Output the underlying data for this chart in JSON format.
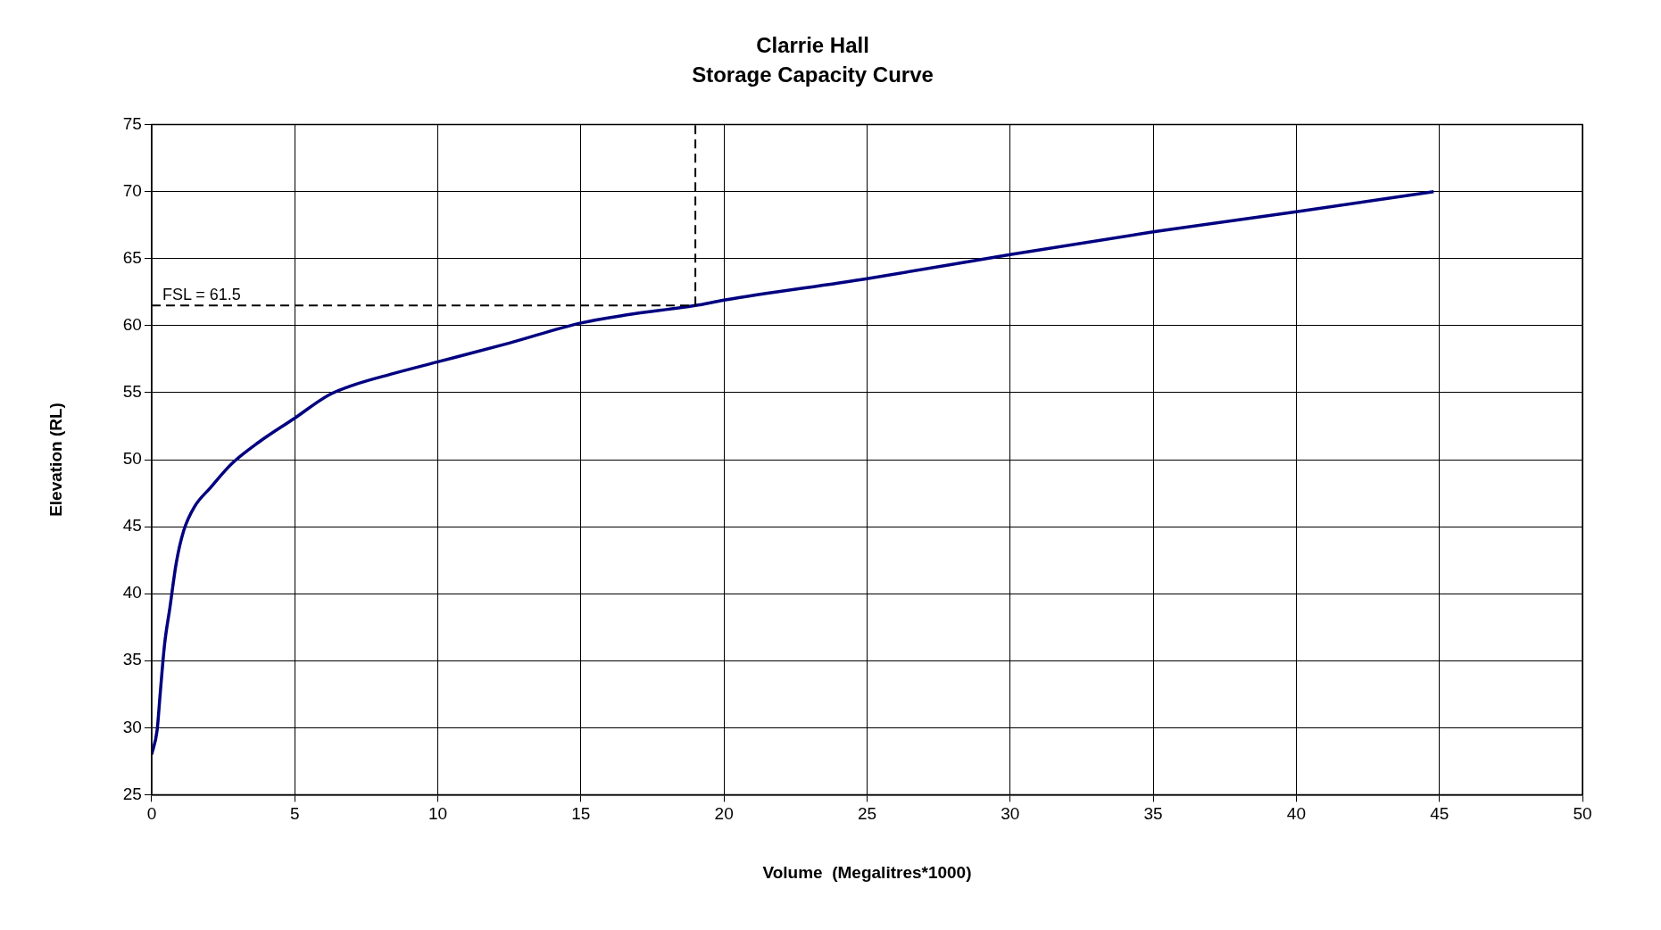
{
  "chart_data": {
    "type": "line",
    "title": "Clarrie Hall",
    "subtitle": "Storage Capacity Curve",
    "xlabel": "Volume  (Megalitres*1000)",
    "ylabel": "Elevation (RL)",
    "series": [
      {
        "color": "#000080",
        "x": [
          0,
          0.19,
          0.3,
          0.45,
          0.64,
          0.86,
          1.12,
          1.5,
          2.05,
          2.8,
          3.74,
          5,
          6.17,
          7.1,
          8.4,
          10,
          12.5,
          15,
          16.6,
          19,
          20,
          25,
          30,
          35,
          40,
          44.8
        ],
        "values": [
          28,
          29.8,
          32.6,
          36.2,
          39,
          42.3,
          44.7,
          46.5,
          47.9,
          49.7,
          51.3,
          53.1,
          54.8,
          55.6,
          56.4,
          57.3,
          58.7,
          60.2,
          60.8,
          61.5,
          61.9,
          63.5,
          65.3,
          67,
          68.5,
          70
        ]
      }
    ],
    "xlim": [
      0,
      50
    ],
    "xticks": [
      0,
      5,
      10,
      15,
      20,
      25,
      30,
      35,
      40,
      45,
      50
    ],
    "ylim": [
      25,
      75
    ],
    "yticks": [
      25,
      30,
      35,
      40,
      45,
      50,
      55,
      60,
      65,
      70,
      75
    ],
    "ref_lines": [
      {
        "axis": "y",
        "value": 61.5,
        "label": "FSL = 61.5",
        "line_style": "dashed"
      },
      {
        "axis": "x",
        "value": 19,
        "line_style": "dashed"
      }
    ],
    "grid": true,
    "legend": false,
    "marker": "none",
    "line_style": "solid"
  }
}
